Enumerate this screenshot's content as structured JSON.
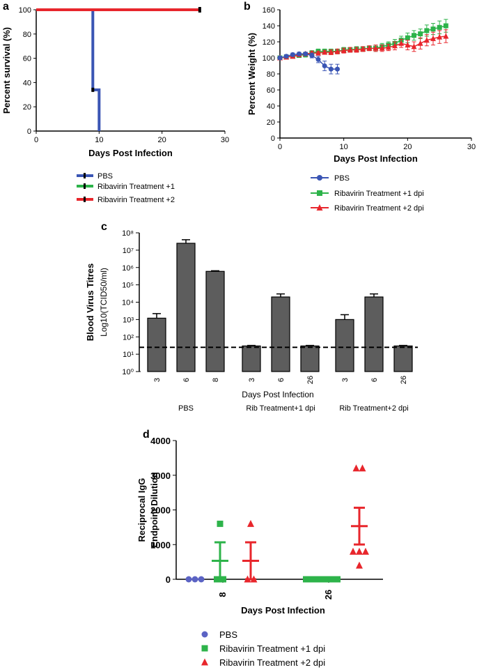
{
  "chart_data": [
    {
      "panel": "a",
      "type": "line",
      "xlabel": "Days Post Infection",
      "ylabel": "Percent survival (%)",
      "xlim": [
        0,
        30
      ],
      "ylim": [
        0,
        100
      ],
      "xticks": [
        0,
        10,
        20,
        30
      ],
      "yticks": [
        0,
        20,
        40,
        60,
        80,
        100
      ],
      "series": [
        {
          "name": "PBS",
          "color": "#3a55b4",
          "x": [
            0,
            9,
            9,
            10,
            10
          ],
          "y": [
            100,
            100,
            34,
            34,
            0
          ]
        },
        {
          "name": "Ribavirin Treatment +1",
          "color": "#2db34a",
          "x": [
            0,
            26
          ],
          "y": [
            100,
            100
          ]
        },
        {
          "name": "Ribavirin Treatment +2",
          "color": "#e8262c",
          "x": [
            0,
            26
          ],
          "y": [
            100,
            100
          ]
        }
      ],
      "legend": "bottom"
    },
    {
      "panel": "b",
      "type": "line",
      "xlabel": "Days Post Infection",
      "ylabel": "Percent Weight (%)",
      "xlim": [
        0,
        30
      ],
      "ylim": [
        0,
        160
      ],
      "xticks": [
        0,
        10,
        20,
        30
      ],
      "yticks": [
        0,
        20,
        40,
        60,
        80,
        100,
        120,
        140,
        160
      ],
      "series": [
        {
          "name": "PBS",
          "color": "#3a55b4",
          "marker": "circle",
          "x": [
            0,
            1,
            2,
            3,
            4,
            5,
            6,
            7,
            8,
            9
          ],
          "y": [
            100,
            102,
            104,
            105,
            105,
            103,
            98,
            90,
            86,
            86
          ],
          "err": [
            2,
            2,
            2,
            2,
            2,
            3,
            4,
            6,
            6,
            6
          ]
        },
        {
          "name": "Ribavirin Treatment +1 dpi",
          "color": "#2db34a",
          "marker": "square",
          "x": [
            0,
            1,
            2,
            3,
            4,
            5,
            6,
            7,
            8,
            9,
            10,
            11,
            12,
            13,
            14,
            15,
            16,
            17,
            18,
            19,
            20,
            21,
            22,
            23,
            24,
            25,
            26
          ],
          "y": [
            100,
            101,
            102,
            103,
            104,
            106,
            108,
            108,
            108,
            108,
            110,
            110,
            111,
            111,
            112,
            112,
            114,
            116,
            118,
            122,
            125,
            128,
            130,
            134,
            136,
            138,
            140
          ],
          "err": [
            2,
            2,
            2,
            2,
            3,
            3,
            3,
            3,
            3,
            3,
            3,
            3,
            3,
            3,
            3,
            4,
            4,
            4,
            5,
            5,
            6,
            6,
            6,
            7,
            7,
            8,
            8
          ]
        },
        {
          "name": "Ribavirin Treatment +2 dpi",
          "color": "#e8262c",
          "marker": "triangle",
          "x": [
            0,
            1,
            2,
            3,
            4,
            5,
            6,
            7,
            8,
            9,
            10,
            11,
            12,
            13,
            14,
            15,
            16,
            17,
            18,
            19,
            20,
            21,
            22,
            23,
            24,
            25,
            26
          ],
          "y": [
            100,
            101,
            102,
            104,
            105,
            106,
            106,
            107,
            107,
            108,
            109,
            110,
            110,
            111,
            112,
            112,
            112,
            113,
            115,
            118,
            116,
            114,
            118,
            122,
            124,
            126,
            127
          ],
          "err": [
            2,
            2,
            2,
            2,
            2,
            2,
            2,
            2,
            3,
            3,
            3,
            3,
            3,
            3,
            3,
            4,
            4,
            4,
            5,
            5,
            6,
            6,
            7,
            7,
            8,
            8,
            8
          ]
        }
      ],
      "legend": "bottom"
    },
    {
      "panel": "c",
      "type": "bar",
      "yscale": "log",
      "xlabel": "Days Post Infection",
      "ylabel_line1": "Blood Virus Titres",
      "ylabel_line2": "Log10(TCID50/ml)",
      "ylim": [
        1,
        100000000
      ],
      "ytick_labels": [
        "10⁰",
        "10¹",
        "10²",
        "10³",
        "10⁴",
        "10⁵",
        "10⁶",
        "10⁷",
        "10⁸"
      ],
      "detection_limit": 25,
      "groups": [
        {
          "name": "PBS",
          "categories": [
            "3",
            "6",
            "8"
          ],
          "values": [
            1200,
            25000000,
            600000
          ],
          "err_upper": [
            2200,
            40000000,
            650000
          ]
        },
        {
          "name": "Rib Treatment+1 dpi",
          "categories": [
            "3",
            "6",
            "26"
          ],
          "values": [
            30,
            20000,
            30
          ],
          "err_upper": [
            32,
            30000,
            32
          ]
        },
        {
          "name": "Rib Treatment+2 dpi",
          "categories": [
            "3",
            "6",
            "26"
          ],
          "values": [
            1000,
            20000,
            30
          ],
          "err_upper": [
            1900,
            30000,
            32
          ]
        }
      ],
      "bar_color": "#5d5d5d"
    },
    {
      "panel": "d",
      "type": "scatter",
      "xlabel": "Days Post Infection",
      "ylabel_line1": "Reciprocal IgG",
      "ylabel_line2": "Endpoint Dilution",
      "ylim": [
        0,
        4000
      ],
      "yticks": [
        0,
        1000,
        2000,
        3000,
        4000
      ],
      "x_categories": [
        "8",
        "26"
      ],
      "series": [
        {
          "name": "PBS",
          "color": "#5b63c4",
          "marker": "circle",
          "day8": [
            0,
            0,
            0
          ],
          "day26": []
        },
        {
          "name": "Ribavirin Treatment +1 dpi",
          "color": "#2db34a",
          "marker": "square",
          "day8": [
            1600,
            0,
            0
          ],
          "day26": [
            0,
            0,
            0,
            0,
            0,
            0
          ],
          "mean8": 533,
          "sem8": 533,
          "mean26": 0,
          "sem26": 0
        },
        {
          "name": "Ribavirin Treatment +2 dpi",
          "color": "#e8262c",
          "marker": "triangle",
          "day8": [
            1600,
            0,
            0
          ],
          "day26": [
            3200,
            3200,
            800,
            800,
            800,
            400
          ],
          "mean8": 533,
          "sem8": 533,
          "mean26": 1533,
          "sem26": 530
        }
      ],
      "legend": "bottom"
    }
  ],
  "panels": {
    "a": {
      "letter": "a",
      "legend": [
        "PBS",
        "Ribavirin Treatment +1",
        "Ribavirin Treatment +2"
      ]
    },
    "b": {
      "letter": "b",
      "legend": [
        "PBS",
        "Ribavirin Treatment +1 dpi",
        "Ribavirin Treatment +2 dpi"
      ]
    },
    "c": {
      "letter": "c"
    },
    "d": {
      "letter": "d",
      "legend": [
        "PBS",
        "Ribavirin Treatment +1 dpi",
        "Ribavirin Treatment +2 dpi"
      ]
    }
  }
}
